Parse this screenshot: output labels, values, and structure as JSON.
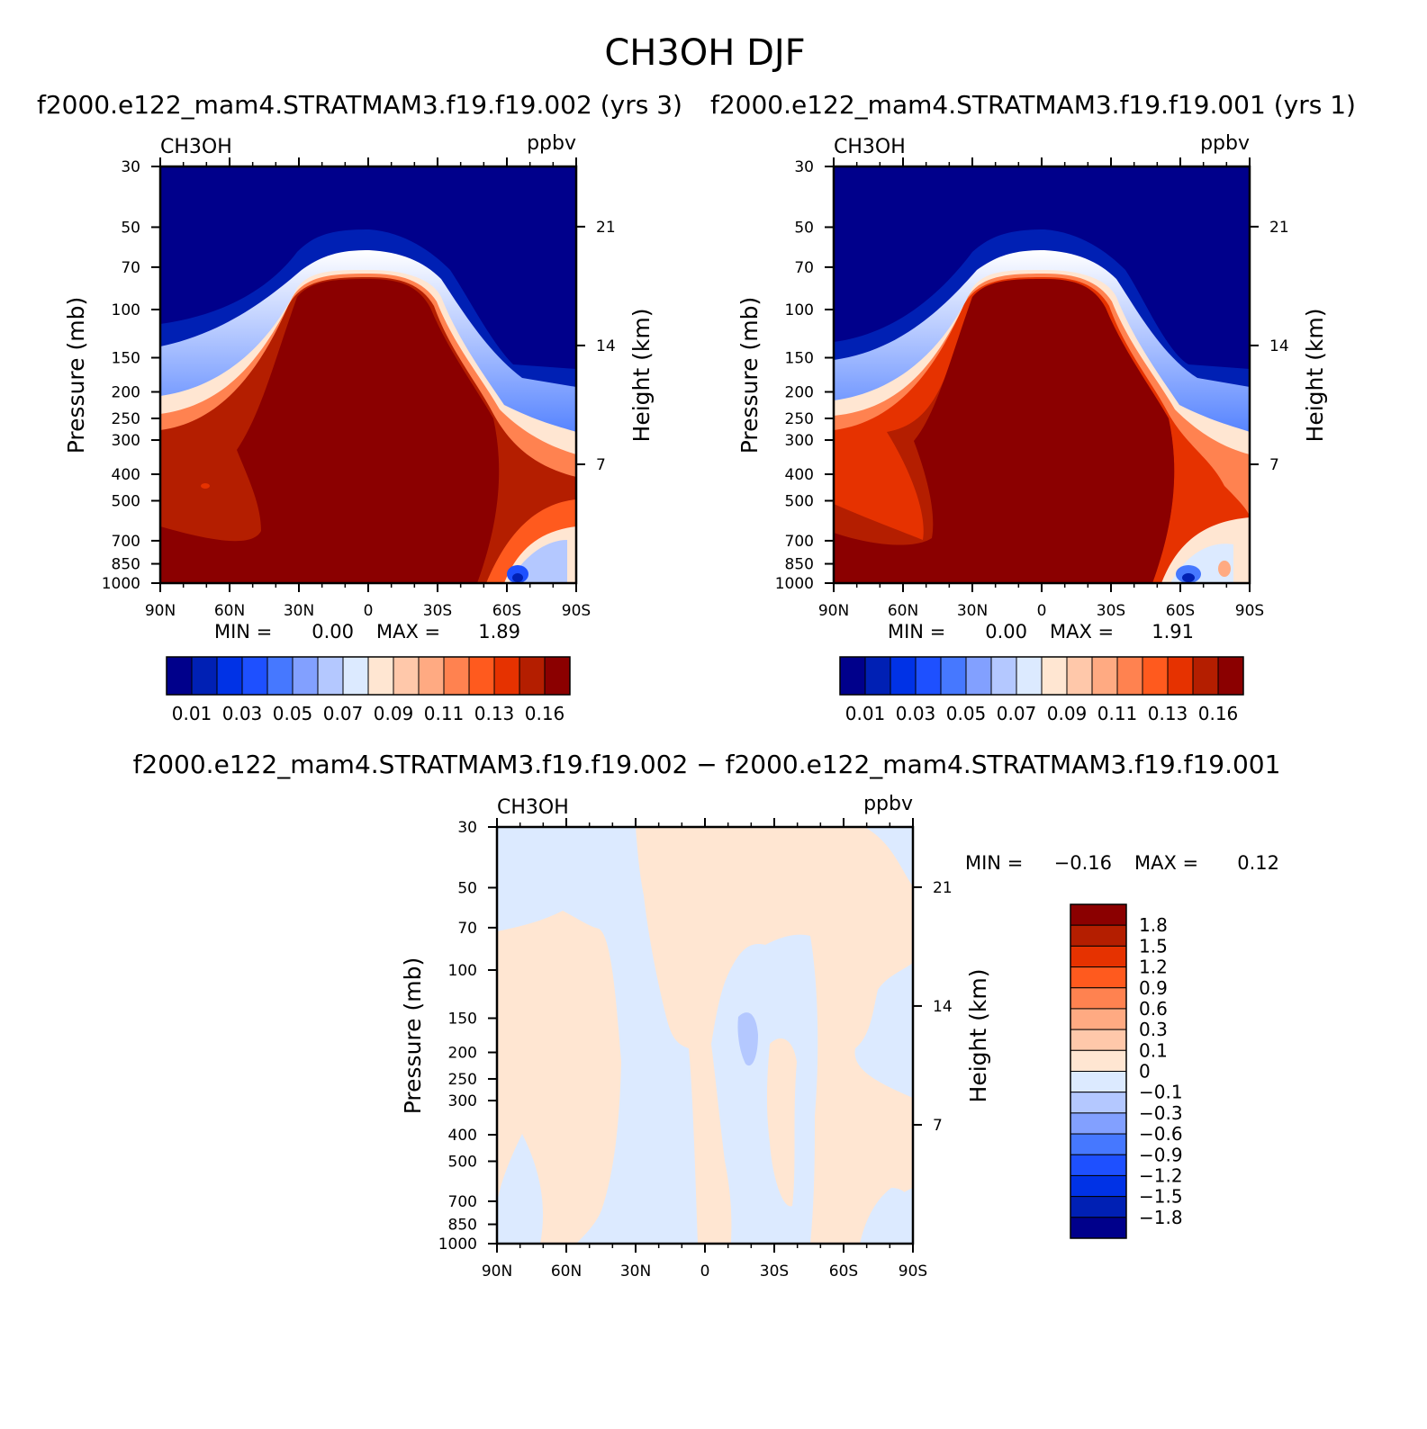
{
  "figure": {
    "title": "CH3OH DJF",
    "subtitle_left": "f2000.e122_mam4.STRATMAM3.f19.f19.002 (yrs 3)",
    "subtitle_right": "f2000.e122_mam4.STRATMAM3.f19.f19.001 (yrs 1)",
    "diff_title": "f2000.e122_mam4.STRATMAM3.f19.f19.002 − f2000.e122_mam4.STRATMAM3.f19.f19.001"
  },
  "chart_data": [
    {
      "type": "heatmap",
      "name": "case-002",
      "variable": "CH3OH",
      "units": "ppbv",
      "xlabel": "",
      "ylabel": "Pressure (mb)",
      "y2label": "Height (km)",
      "x_ticks": [
        "90N",
        "60N",
        "30N",
        "0",
        "30S",
        "60S",
        "90S"
      ],
      "y_ticks": [
        30,
        50,
        70,
        100,
        150,
        200,
        250,
        300,
        400,
        500,
        700,
        850,
        1000
      ],
      "y2_ticks": [
        21,
        14,
        7
      ],
      "ylim": [
        1000,
        30
      ],
      "min_label": "MIN =",
      "min_value": "0.00",
      "max_label": "MAX =",
      "max_value": "1.89",
      "colorbar_labels": [
        "0.01",
        "0.03",
        "0.05",
        "0.07",
        "0.09",
        "0.11",
        "0.13",
        "0.16"
      ],
      "colorbar_colors": [
        "#00008b",
        "#0020b4",
        "#0032e6",
        "#1e50ff",
        "#4678ff",
        "#82a0ff",
        "#b4c8ff",
        "#dceaff",
        "#ffe6d2",
        "#ffc8aa",
        "#ffaa82",
        "#ff8250",
        "#ff5a1e",
        "#e63200",
        "#b41e00",
        "#8b0000"
      ]
    },
    {
      "type": "heatmap",
      "name": "case-001",
      "variable": "CH3OH",
      "units": "ppbv",
      "xlabel": "",
      "ylabel": "Pressure (mb)",
      "y2label": "Height (km)",
      "x_ticks": [
        "90N",
        "60N",
        "30N",
        "0",
        "30S",
        "60S",
        "90S"
      ],
      "y_ticks": [
        30,
        50,
        70,
        100,
        150,
        200,
        250,
        300,
        400,
        500,
        700,
        850,
        1000
      ],
      "y2_ticks": [
        21,
        14,
        7
      ],
      "ylim": [
        1000,
        30
      ],
      "min_label": "MIN =",
      "min_value": "0.00",
      "max_label": "MAX =",
      "max_value": "1.91",
      "colorbar_labels": [
        "0.01",
        "0.03",
        "0.05",
        "0.07",
        "0.09",
        "0.11",
        "0.13",
        "0.16"
      ],
      "colorbar_colors": [
        "#00008b",
        "#0020b4",
        "#0032e6",
        "#1e50ff",
        "#4678ff",
        "#82a0ff",
        "#b4c8ff",
        "#dceaff",
        "#ffe6d2",
        "#ffc8aa",
        "#ffaa82",
        "#ff8250",
        "#ff5a1e",
        "#e63200",
        "#b41e00",
        "#8b0000"
      ]
    },
    {
      "type": "heatmap",
      "name": "difference",
      "variable": "CH3OH",
      "units": "ppbv",
      "xlabel": "",
      "ylabel": "Pressure (mb)",
      "y2label": "Height (km)",
      "x_ticks": [
        "90N",
        "60N",
        "30N",
        "0",
        "30S",
        "60S",
        "90S"
      ],
      "y_ticks": [
        30,
        50,
        70,
        100,
        150,
        200,
        250,
        300,
        400,
        500,
        700,
        850,
        1000
      ],
      "y2_ticks": [
        21,
        14,
        7
      ],
      "ylim": [
        1000,
        30
      ],
      "min_label": "MIN =",
      "min_value": "−0.16",
      "max_label": "MAX =",
      "max_value": "0.12",
      "colorbar_labels": [
        "1.8",
        "1.5",
        "1.2",
        "0.9",
        "0.6",
        "0.3",
        "0.1",
        "0",
        "−0.1",
        "−0.3",
        "−0.6",
        "−0.9",
        "−1.2",
        "−1.5",
        "−1.8"
      ],
      "colorbar_colors": [
        "#8b0000",
        "#b41e00",
        "#e63200",
        "#ff5a1e",
        "#ff8250",
        "#ffaa82",
        "#ffc8aa",
        "#ffe6d2",
        "#dceaff",
        "#b4c8ff",
        "#82a0ff",
        "#4678ff",
        "#1e50ff",
        "#0032e6",
        "#0020b4",
        "#00008b"
      ]
    }
  ]
}
